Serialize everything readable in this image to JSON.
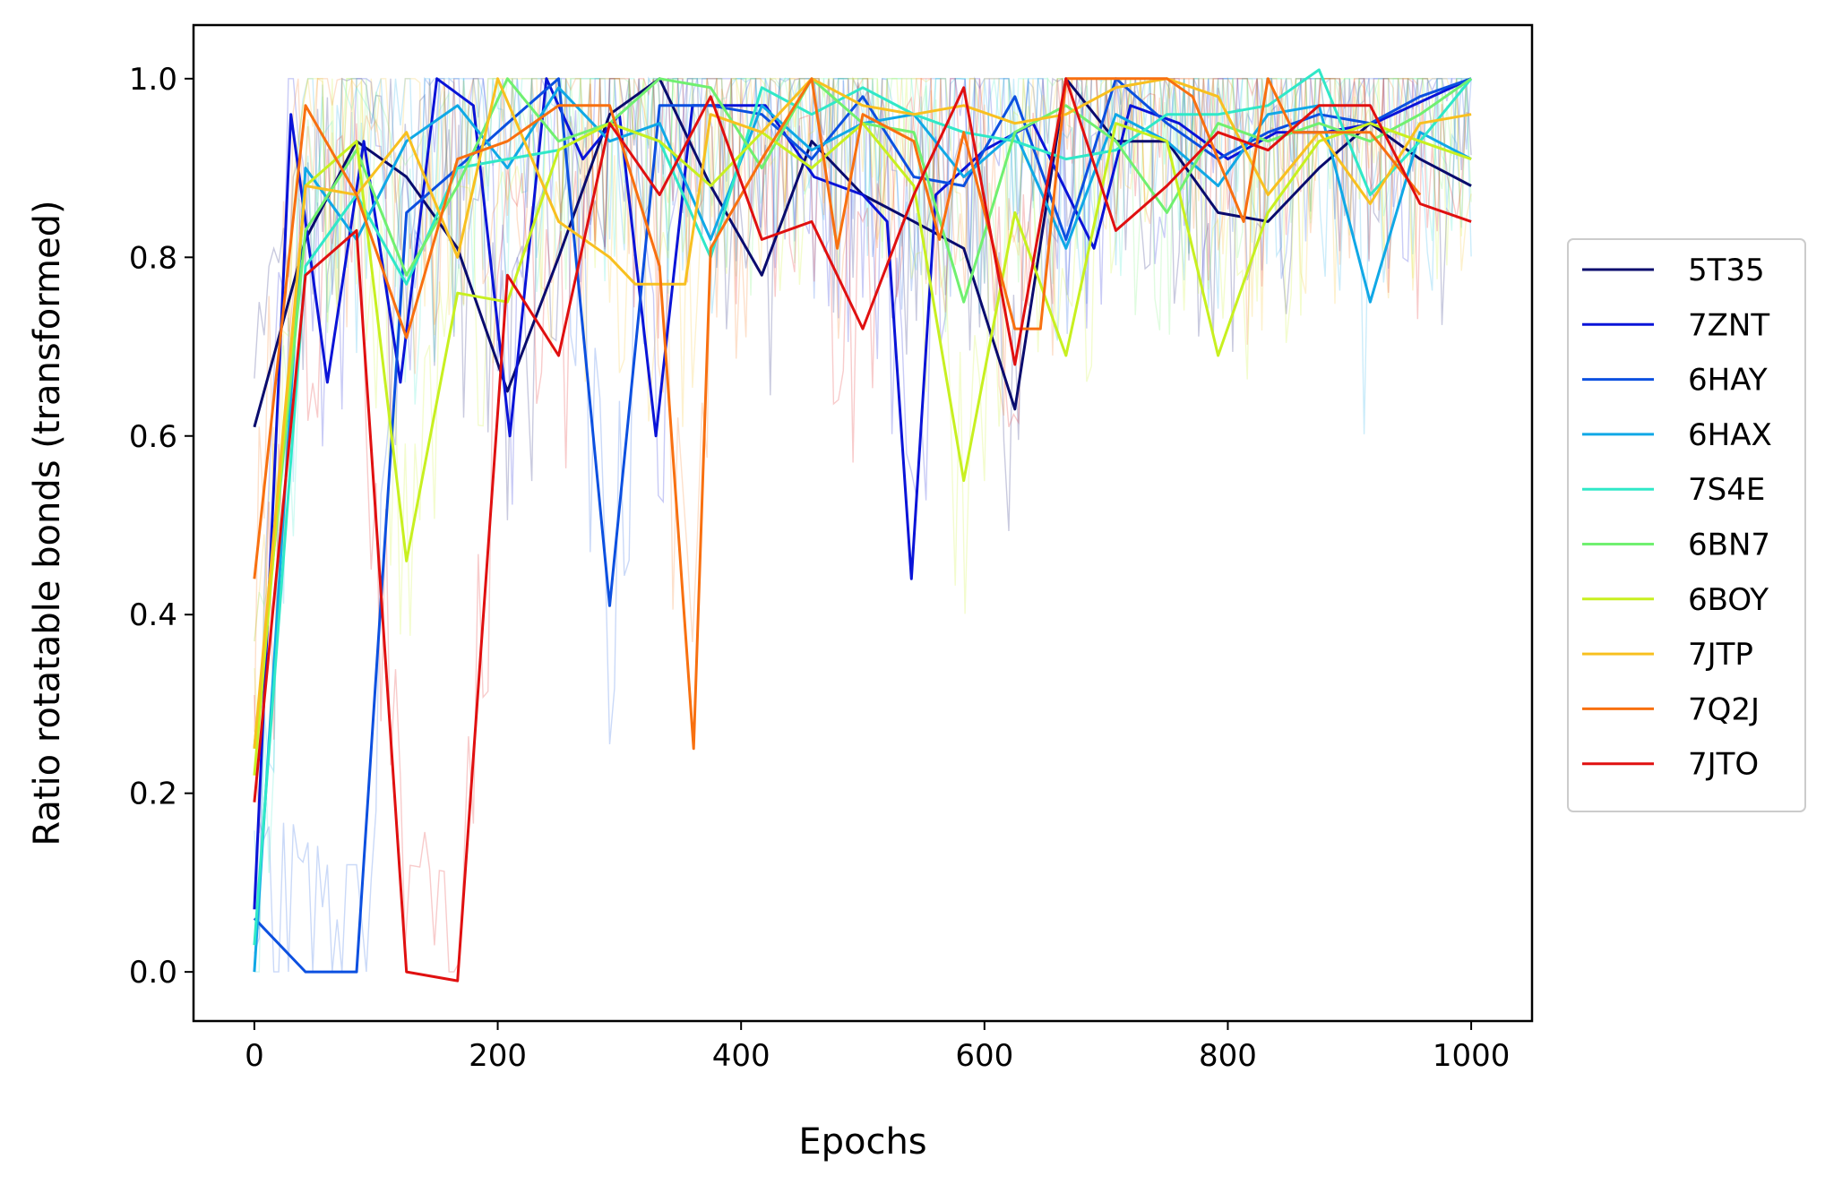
{
  "chart_data": {
    "type": "line",
    "title": "",
    "xlabel": "Epochs",
    "ylabel": "Ratio rotatable bonds (transformed)",
    "xlim": [
      -50,
      1050
    ],
    "ylim": [
      -0.055,
      1.06
    ],
    "xticks": [
      0,
      200,
      400,
      600,
      800,
      1000
    ],
    "yticks": [
      0.0,
      0.2,
      0.4,
      0.6,
      0.8,
      1.0
    ],
    "xtick_labels": [
      "0",
      "200",
      "400",
      "600",
      "800",
      "1000"
    ],
    "ytick_labels": [
      "0.0",
      "0.2",
      "0.4",
      "0.6",
      "0.8",
      "1.0"
    ],
    "grid": false,
    "legend_position": "right (outside plot, vertically centered)",
    "background_traces": "faint per-epoch raw values drawn behind each smoothed series",
    "series": [
      {
        "name": "5T35",
        "color": "#0a0c6e",
        "x": [
          0,
          42,
          84,
          125,
          167,
          208,
          250,
          292,
          333,
          375,
          417,
          458,
          500,
          542,
          583,
          625,
          667,
          708,
          750,
          792,
          833,
          875,
          917,
          958,
          1000
        ],
        "y": [
          0.61,
          0.82,
          0.93,
          0.89,
          0.81,
          0.65,
          0.8,
          0.96,
          1.0,
          0.88,
          0.78,
          0.93,
          0.87,
          0.84,
          0.81,
          0.63,
          1.0,
          0.93,
          0.93,
          0.85,
          0.84,
          0.9,
          0.95,
          0.91,
          0.88
        ]
      },
      {
        "name": "7ZNT",
        "color": "#0a14d8",
        "x": [
          0,
          30,
          60,
          90,
          120,
          150,
          180,
          210,
          240,
          270,
          300,
          330,
          360,
          420,
          460,
          500,
          520,
          540,
          560,
          600,
          640,
          690,
          720,
          760,
          800,
          840,
          880,
          920,
          1000
        ],
        "y": [
          0.07,
          0.96,
          0.66,
          0.93,
          0.66,
          1.0,
          0.97,
          0.6,
          1.0,
          0.91,
          0.96,
          0.6,
          0.97,
          0.97,
          0.89,
          0.87,
          0.84,
          0.44,
          0.87,
          0.92,
          0.95,
          0.81,
          0.97,
          0.95,
          0.91,
          0.94,
          0.94,
          0.95,
          1.0
        ]
      },
      {
        "name": "6HAY",
        "color": "#0c50e0",
        "x": [
          0,
          42,
          84,
          125,
          167,
          208,
          250,
          292,
          333,
          375,
          417,
          458,
          500,
          542,
          583,
          625,
          667,
          708,
          750,
          792,
          833,
          875,
          917,
          958,
          1000
        ],
        "y": [
          0.06,
          0.0,
          0.0,
          0.85,
          0.9,
          0.95,
          1.0,
          0.41,
          0.97,
          0.97,
          0.96,
          0.91,
          0.98,
          0.89,
          0.88,
          0.98,
          0.82,
          1.0,
          0.95,
          0.91,
          0.94,
          0.96,
          0.95,
          0.98,
          1.0
        ]
      },
      {
        "name": "6HAX",
        "color": "#10a8e6",
        "x": [
          0,
          42,
          84,
          125,
          167,
          208,
          250,
          292,
          333,
          375,
          417,
          458,
          500,
          542,
          583,
          625,
          667,
          708,
          750,
          792,
          833,
          875,
          917,
          958,
          1000
        ],
        "y": [
          0.0,
          0.9,
          0.82,
          0.93,
          0.97,
          0.9,
          0.99,
          0.93,
          0.95,
          0.82,
          0.97,
          0.92,
          0.95,
          0.96,
          0.89,
          0.94,
          0.81,
          0.96,
          0.93,
          0.88,
          0.96,
          0.97,
          0.75,
          0.94,
          0.91
        ]
      },
      {
        "name": "7S4E",
        "color": "#30e8c8",
        "x": [
          0,
          42,
          84,
          125,
          167,
          208,
          250,
          292,
          333,
          375,
          417,
          458,
          500,
          542,
          583,
          625,
          667,
          708,
          750,
          792,
          833,
          875,
          917,
          958,
          1000
        ],
        "y": [
          0.03,
          0.79,
          0.87,
          0.77,
          0.9,
          0.91,
          0.92,
          0.95,
          0.93,
          0.8,
          0.99,
          0.96,
          0.99,
          0.96,
          0.94,
          0.93,
          0.91,
          0.92,
          0.96,
          0.96,
          0.97,
          1.01,
          0.87,
          0.93,
          1.0
        ]
      },
      {
        "name": "6BN7",
        "color": "#70f070",
        "x": [
          0,
          42,
          84,
          125,
          167,
          208,
          250,
          292,
          333,
          375,
          417,
          458,
          500,
          542,
          583,
          625,
          667,
          708,
          750,
          792,
          833,
          875,
          917,
          958,
          1000
        ],
        "y": [
          0.25,
          0.83,
          0.92,
          0.78,
          0.88,
          1.0,
          0.93,
          0.95,
          1.0,
          0.99,
          0.9,
          1.0,
          0.95,
          0.94,
          0.75,
          0.94,
          0.97,
          0.93,
          0.85,
          0.95,
          0.93,
          0.95,
          0.93,
          0.96,
          1.0
        ]
      },
      {
        "name": "6BOY",
        "color": "#c8f020",
        "x": [
          0,
          42,
          84,
          125,
          167,
          208,
          250,
          292,
          333,
          375,
          417,
          458,
          500,
          542,
          583,
          625,
          667,
          708,
          750,
          792,
          833,
          875,
          917,
          958,
          1000
        ],
        "y": [
          0.22,
          0.88,
          0.93,
          0.46,
          0.76,
          0.75,
          0.92,
          0.95,
          0.93,
          0.88,
          0.94,
          0.9,
          0.95,
          0.88,
          0.55,
          0.85,
          0.69,
          0.95,
          0.93,
          0.69,
          0.85,
          0.93,
          0.95,
          0.93,
          0.91
        ]
      },
      {
        "name": "7JTP",
        "color": "#f8c020",
        "x": [
          0,
          42,
          84,
          125,
          167,
          200,
          250,
          292,
          313,
          333,
          354,
          375,
          417,
          458,
          500,
          542,
          583,
          625,
          667,
          708,
          750,
          792,
          833,
          875,
          917,
          958,
          1000
        ],
        "y": [
          0.25,
          0.88,
          0.87,
          0.94,
          0.8,
          1.0,
          0.84,
          0.8,
          0.77,
          0.77,
          0.77,
          0.96,
          0.94,
          1.0,
          0.97,
          0.96,
          0.97,
          0.95,
          0.96,
          0.99,
          1.0,
          0.98,
          0.87,
          0.94,
          0.86,
          0.95,
          0.96
        ]
      },
      {
        "name": "7Q2J",
        "color": "#f87010",
        "x": [
          0,
          42,
          84,
          125,
          167,
          208,
          250,
          292,
          333,
          361,
          375,
          417,
          458,
          479,
          500,
          542,
          563,
          583,
          625,
          646,
          667,
          708,
          750,
          771,
          813,
          833,
          854,
          875,
          917,
          958
        ],
        "y": [
          0.44,
          0.97,
          0.87,
          0.71,
          0.91,
          0.93,
          0.97,
          0.97,
          0.79,
          0.25,
          0.81,
          0.91,
          1.0,
          0.81,
          0.96,
          0.93,
          0.82,
          0.94,
          0.72,
          0.72,
          1.0,
          1.0,
          1.0,
          0.98,
          0.84,
          1.0,
          0.94,
          0.94,
          0.94,
          0.87
        ]
      },
      {
        "name": "7JTO",
        "color": "#e01010",
        "x": [
          0,
          42,
          84,
          125,
          167,
          208,
          250,
          292,
          333,
          375,
          417,
          458,
          500,
          542,
          583,
          625,
          667,
          708,
          750,
          792,
          833,
          875,
          917,
          958,
          1000
        ],
        "y": [
          0.19,
          0.78,
          0.83,
          0.0,
          -0.01,
          0.78,
          0.69,
          0.95,
          0.87,
          0.98,
          0.82,
          0.84,
          0.72,
          0.87,
          0.99,
          0.68,
          1.0,
          0.83,
          0.88,
          0.94,
          0.92,
          0.97,
          0.97,
          0.86,
          0.84
        ]
      }
    ]
  }
}
